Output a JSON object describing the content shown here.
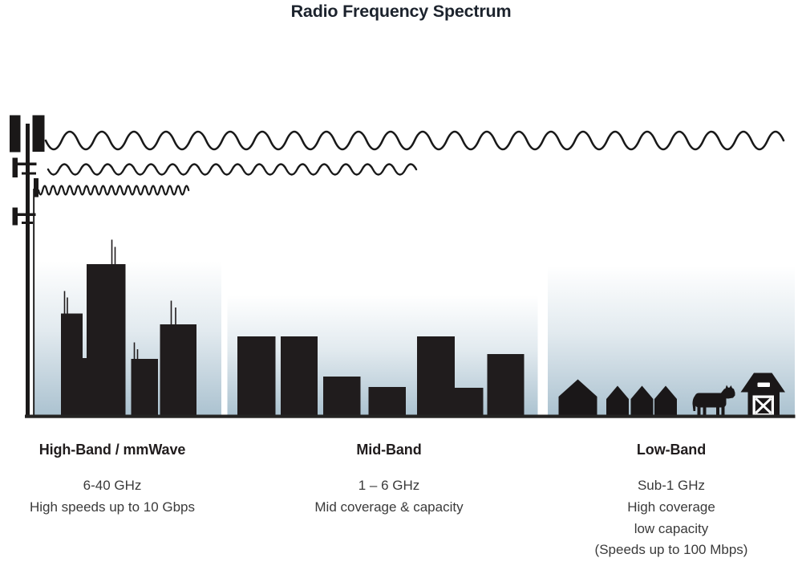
{
  "title": "Radio Frequency Spectrum",
  "bands": [
    {
      "name": "High-Band / mmWave",
      "frequency": "6-40 GHz",
      "details": [
        "High speeds up to 10 Gbps"
      ],
      "wave_icon": "short-wavelength-wave",
      "scene_icons": [
        "cell-tower",
        "skyscrapers-with-antennas"
      ]
    },
    {
      "name": "Mid-Band",
      "frequency": "1 – 6 GHz",
      "details": [
        "Mid coverage & capacity"
      ],
      "wave_icon": "medium-wavelength-wave",
      "scene_icons": [
        "mid-rise-buildings"
      ]
    },
    {
      "name": "Low-Band",
      "frequency": "Sub-1 GHz",
      "details": [
        "High coverage",
        "low capacity",
        "(Speeds up to 100 Mbps)"
      ],
      "wave_icon": "long-wavelength-wave",
      "scene_icons": [
        "houses",
        "cow",
        "barn"
      ]
    }
  ],
  "colors": {
    "background": "#ffffff",
    "title_text": "#1c232d",
    "heading_text": "#201c1d",
    "body_text": "#3a3a3a",
    "silhouette_ink": "#201c1d",
    "wave_ink": "#191919",
    "ground_line": "#242322",
    "coverage_gradient_top": "#ffffff",
    "coverage_gradient_bottom": "#abc2d0"
  }
}
